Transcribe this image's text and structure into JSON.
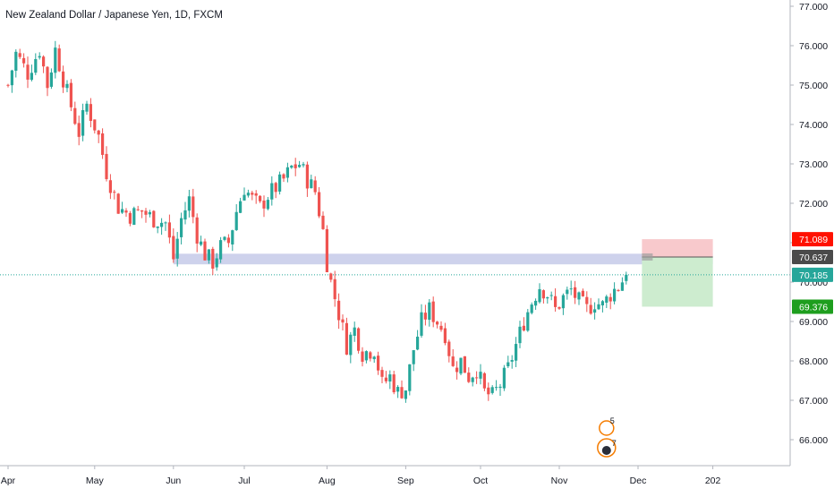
{
  "header": {
    "title": "New Zealand Dollar / Japanese Yen, 1D, FXCM"
  },
  "colors": {
    "up": "#26a69a",
    "down": "#ef5350",
    "zone": "#c5cae9",
    "stop": "#f8c9cc",
    "target": "#cdeccf",
    "price_label": "#26a69a",
    "stop_label": "#ff1100",
    "entry_label": "#4a4a4a",
    "target_label": "#1e9e1e"
  },
  "chart_data": {
    "type": "candlestick",
    "title": "New Zealand Dollar / Japanese Yen, 1D, FXCM",
    "ylim": [
      65.6,
      77.25
    ],
    "y_ticks": [
      "77.000",
      "76.000",
      "75.000",
      "74.000",
      "73.000",
      "72.000",
      "71.000",
      "70.000",
      "69.000",
      "68.000",
      "67.000",
      "66.000"
    ],
    "x_ticks": [
      "Apr",
      "May",
      "Jun",
      "Jul",
      "Aug",
      "Sep",
      "Oct",
      "Nov",
      "Dec",
      "202"
    ],
    "anchors": [
      {
        "label": "Apr",
        "index": 0
      },
      {
        "label": "May",
        "index": 22
      },
      {
        "label": "Jun",
        "index": 42
      },
      {
        "label": "Jul",
        "index": 60
      },
      {
        "label": "Aug",
        "index": 81
      },
      {
        "label": "Sep",
        "index": 101
      },
      {
        "label": "Oct",
        "index": 120
      },
      {
        "label": "Nov",
        "index": 140
      },
      {
        "label": "Dec",
        "index": 160
      },
      {
        "label": "202",
        "index": 179
      }
    ],
    "path": [
      [
        0,
        75.0
      ],
      [
        2,
        75.8
      ],
      [
        5,
        75.3
      ],
      [
        8,
        75.9
      ],
      [
        10,
        75.0
      ],
      [
        12,
        75.9
      ],
      [
        15,
        74.8
      ],
      [
        18,
        73.8
      ],
      [
        20,
        74.5
      ],
      [
        23,
        73.7
      ],
      [
        25,
        72.8
      ],
      [
        28,
        71.9
      ],
      [
        31,
        71.7
      ],
      [
        34,
        71.8
      ],
      [
        37,
        71.6
      ],
      [
        40,
        71.5
      ],
      [
        42,
        70.6
      ],
      [
        44,
        71.6
      ],
      [
        46,
        72.1
      ],
      [
        48,
        71.2
      ],
      [
        50,
        70.7
      ],
      [
        52,
        70.5
      ],
      [
        54,
        70.9
      ],
      [
        56,
        71.0
      ],
      [
        58,
        71.8
      ],
      [
        60,
        72.4
      ],
      [
        62,
        72.1
      ],
      [
        64,
        71.9
      ],
      [
        66,
        72.2
      ],
      [
        68,
        72.4
      ],
      [
        70,
        72.6
      ],
      [
        72,
        72.9
      ],
      [
        74,
        73.0
      ],
      [
        76,
        72.6
      ],
      [
        78,
        72.3
      ],
      [
        80,
        71.3
      ],
      [
        81,
        70.5
      ],
      [
        82,
        70.0
      ],
      [
        84,
        69.2
      ],
      [
        86,
        68.4
      ],
      [
        88,
        68.8
      ],
      [
        90,
        68.2
      ],
      [
        93,
        68.3
      ],
      [
        95,
        67.4
      ],
      [
        97,
        67.6
      ],
      [
        99,
        67.2
      ],
      [
        101,
        67.3
      ],
      [
        103,
        68.3
      ],
      [
        105,
        69.0
      ],
      [
        107,
        69.3
      ],
      [
        109,
        69.0
      ],
      [
        111,
        68.7
      ],
      [
        113,
        67.8
      ],
      [
        115,
        68.0
      ],
      [
        117,
        67.6
      ],
      [
        119,
        67.8
      ],
      [
        121,
        67.2
      ],
      [
        123,
        67.1
      ],
      [
        125,
        67.4
      ],
      [
        127,
        67.8
      ],
      [
        129,
        68.4
      ],
      [
        131,
        69.0
      ],
      [
        133,
        69.5
      ],
      [
        135,
        69.9
      ],
      [
        137,
        69.7
      ],
      [
        139,
        69.3
      ],
      [
        141,
        69.6
      ],
      [
        143,
        69.8
      ],
      [
        145,
        69.5
      ],
      [
        147,
        69.3
      ],
      [
        149,
        69.5
      ],
      [
        151,
        69.4
      ],
      [
        153,
        69.7
      ],
      [
        155,
        69.9
      ],
      [
        157,
        70.185
      ]
    ],
    "last_price": 70.185,
    "support_zone": [
      70.45,
      70.72
    ],
    "position": {
      "stop": 71.089,
      "entry": 70.637,
      "target": 69.376,
      "start_index": 161,
      "end_index": 179
    },
    "price_labels": {
      "stop": "71.089",
      "entry": "70.637",
      "last": "70.185",
      "target": "69.376"
    },
    "events": [
      {
        "label": "5"
      },
      {
        "label": "7"
      }
    ]
  }
}
